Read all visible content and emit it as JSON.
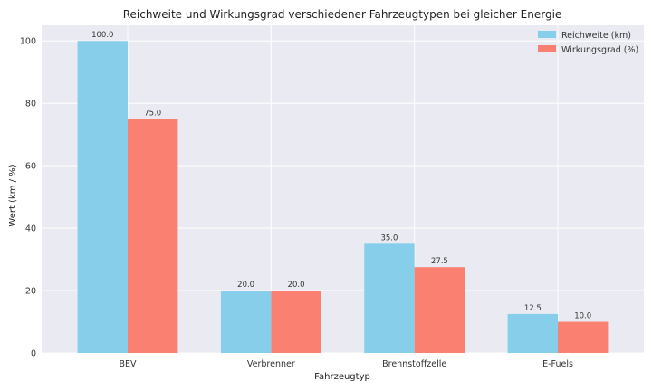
{
  "chart_data": {
    "type": "bar",
    "title": "Reichweite und Wirkungsgrad verschiedener Fahrzeugtypen bei gleicher Energie",
    "xlabel": "Fahrzeugtyp",
    "ylabel": "Wert (km / %)",
    "categories": [
      "BEV",
      "Verbrenner",
      "Brennstoffzelle",
      "E-Fuels"
    ],
    "series": [
      {
        "name": "Reichweite (km)",
        "color": "#87ceeb",
        "values": [
          100.0,
          20.0,
          35.0,
          12.5
        ]
      },
      {
        "name": "Wirkungsgrad (%)",
        "color": "#fa8072",
        "values": [
          75.0,
          20.0,
          27.5,
          10.0
        ]
      }
    ],
    "ylim": [
      0,
      105
    ],
    "yticks": [
      0,
      20,
      40,
      60,
      80,
      100
    ],
    "grid": true,
    "legend_position": "top-right",
    "background": "#eaeaf2"
  }
}
